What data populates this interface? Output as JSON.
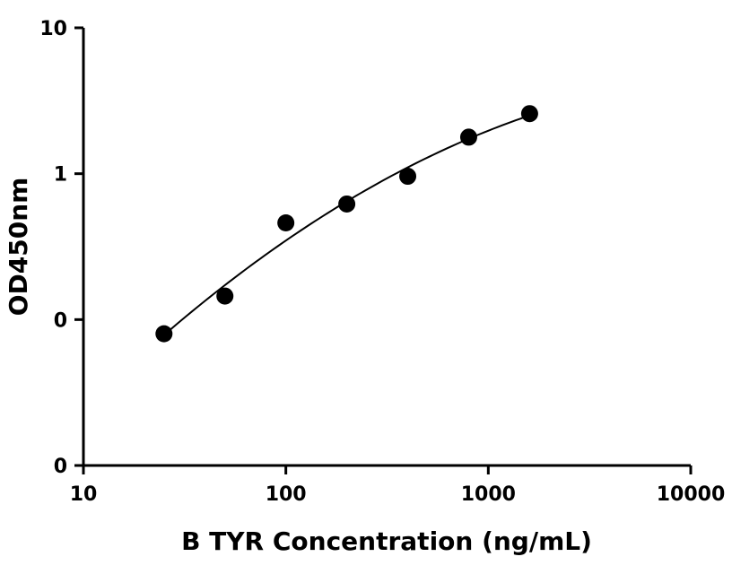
{
  "chart_data": {
    "type": "scatter",
    "title": "",
    "xlabel": "B TYR Concentration (ng/mL)",
    "ylabel": "OD450nm",
    "xscale": "log",
    "yscale": "log",
    "xlim": [
      10,
      10000
    ],
    "ylim": [
      0.01,
      10
    ],
    "grid": false,
    "x_ticks": [
      {
        "value": 10,
        "label": "10"
      },
      {
        "value": 100,
        "label": "100"
      },
      {
        "value": 1000,
        "label": "1000"
      },
      {
        "value": 10000,
        "label": "10000"
      }
    ],
    "y_ticks": [
      {
        "value": 0.01,
        "label": "0"
      },
      {
        "value": 0.1,
        "label": "0"
      },
      {
        "value": 1,
        "label": "1"
      },
      {
        "value": 10,
        "label": "10"
      }
    ],
    "series": [
      {
        "x": [
          25,
          50,
          100,
          200,
          400,
          800,
          1600
        ],
        "y": [
          0.08,
          0.145,
          0.46,
          0.62,
          0.96,
          1.78,
          2.58
        ],
        "marker": "circle",
        "color": "#000000"
      }
    ],
    "fit_curve": {
      "x_range": [
        25,
        1600
      ],
      "color": "#000000"
    }
  }
}
